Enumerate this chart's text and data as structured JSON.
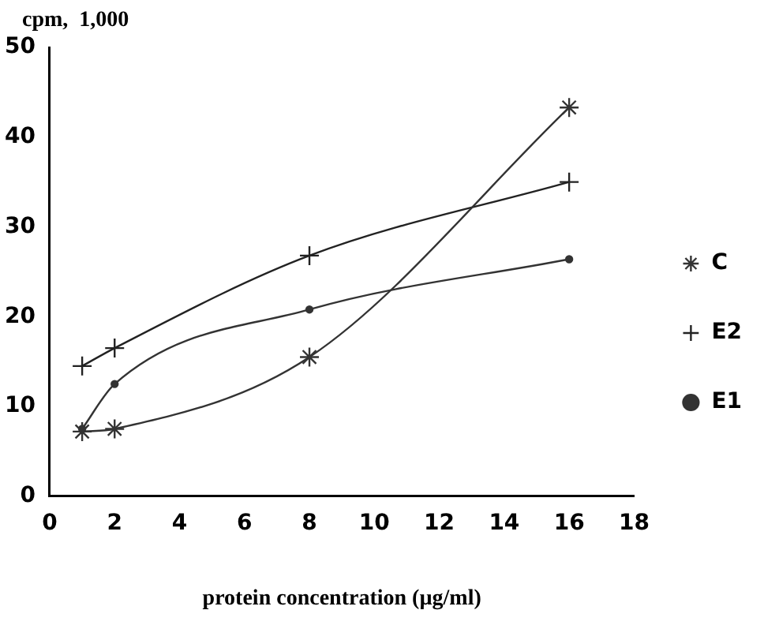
{
  "chart_data": {
    "type": "line",
    "ylabel": "cpm,  1,000",
    "xlabel": "protein concentration (µg/ml)",
    "x": [
      1,
      2,
      8,
      16
    ],
    "series": [
      {
        "name": "C",
        "color": "#333333",
        "values": [
          7.2,
          7.5,
          15.5,
          43.3
        ],
        "marker": "cross"
      },
      {
        "name": "E2",
        "color": "#222222",
        "values": [
          14.5,
          16.5,
          26.8,
          35
        ],
        "marker": "cross"
      },
      {
        "name": "E1",
        "color": "#333333",
        "values": [
          7.5,
          12.5,
          20.8,
          26.4
        ],
        "marker": "circle"
      }
    ],
    "xlim": [
      0,
      18
    ],
    "xticks": [
      0,
      2,
      4,
      6,
      8,
      10,
      12,
      14,
      16,
      18
    ],
    "ylim": [
      0,
      50
    ],
    "yticks": [
      0,
      10,
      20,
      30,
      40,
      50
    ],
    "grid": false,
    "legend": "right",
    "line_style": "solid"
  }
}
